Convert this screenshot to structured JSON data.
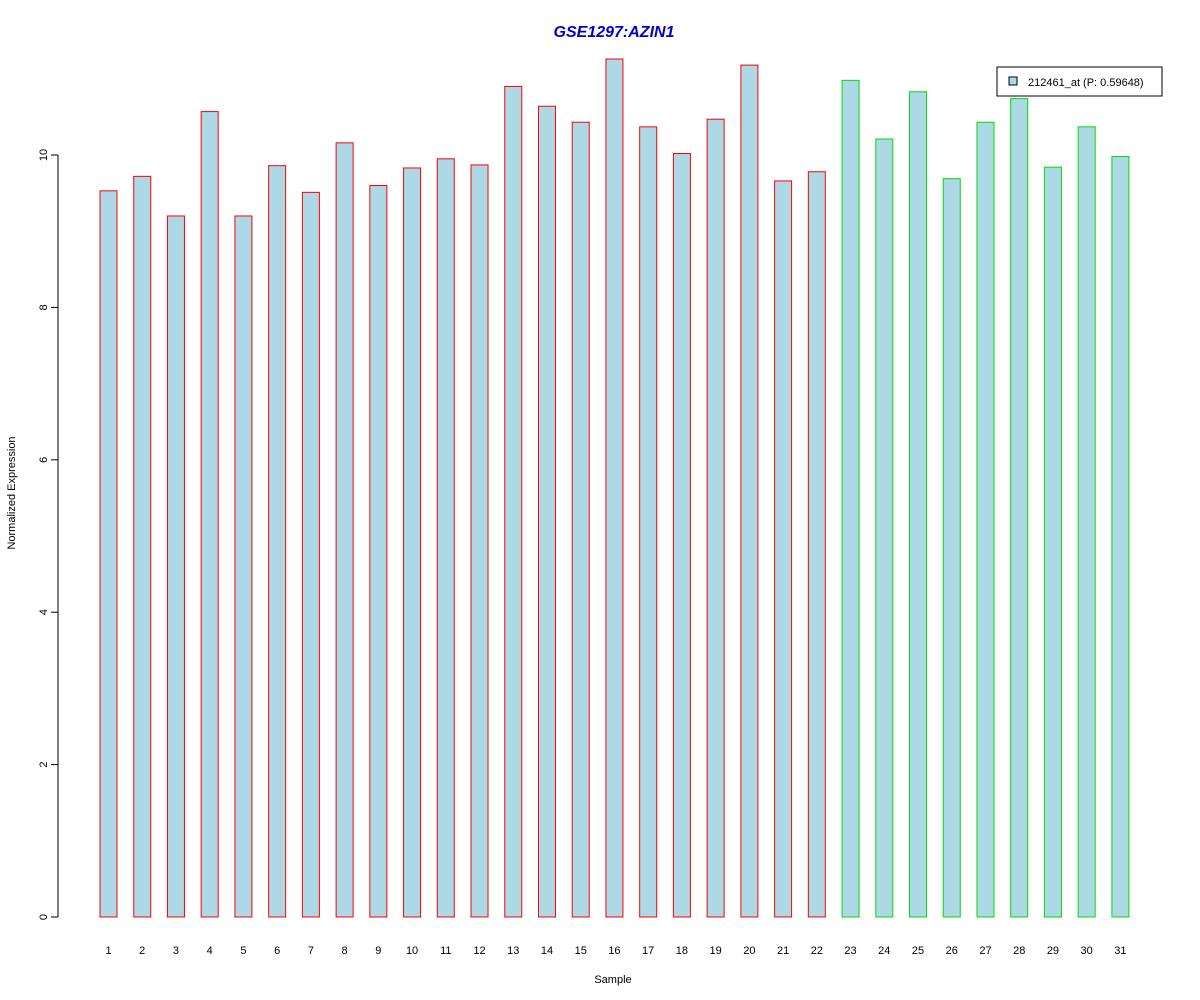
{
  "chart_data": {
    "type": "bar",
    "title": "GSE1297:AZIN1",
    "xlabel": "Sample",
    "ylabel": "Normalized Expression",
    "categories": [
      "1",
      "2",
      "3",
      "4",
      "5",
      "6",
      "7",
      "8",
      "9",
      "10",
      "11",
      "12",
      "13",
      "14",
      "15",
      "16",
      "17",
      "18",
      "19",
      "20",
      "21",
      "22",
      "23",
      "24",
      "25",
      "26",
      "27",
      "28",
      "29",
      "30",
      "31"
    ],
    "series": [
      {
        "name": "212461_at (P: 0.59648)",
        "values": [
          9.53,
          9.72,
          9.2,
          10.57,
          9.2,
          9.86,
          9.51,
          10.16,
          9.6,
          9.83,
          9.95,
          9.87,
          10.9,
          10.64,
          10.43,
          11.26,
          10.37,
          10.02,
          10.47,
          11.18,
          9.66,
          9.78,
          10.98,
          10.21,
          10.83,
          9.69,
          10.43,
          10.74,
          9.84,
          10.37,
          9.98
        ]
      }
    ],
    "group_of_sample": [
      "a",
      "a",
      "a",
      "a",
      "a",
      "a",
      "a",
      "a",
      "a",
      "a",
      "a",
      "a",
      "a",
      "a",
      "a",
      "a",
      "a",
      "a",
      "a",
      "a",
      "a",
      "a",
      "b",
      "b",
      "b",
      "b",
      "b",
      "b",
      "b",
      "b",
      "b"
    ],
    "ylim": [
      0,
      11.26
    ],
    "yticks": [
      0,
      2,
      4,
      6,
      8,
      10
    ],
    "grid": false,
    "legend_position": "top-right",
    "colors": {
      "title": "#0000CC",
      "bar_fill": "#ADD8E6",
      "group_a_border": "#FF0000",
      "group_b_border": "#00DD00",
      "axis": "#000000"
    }
  }
}
